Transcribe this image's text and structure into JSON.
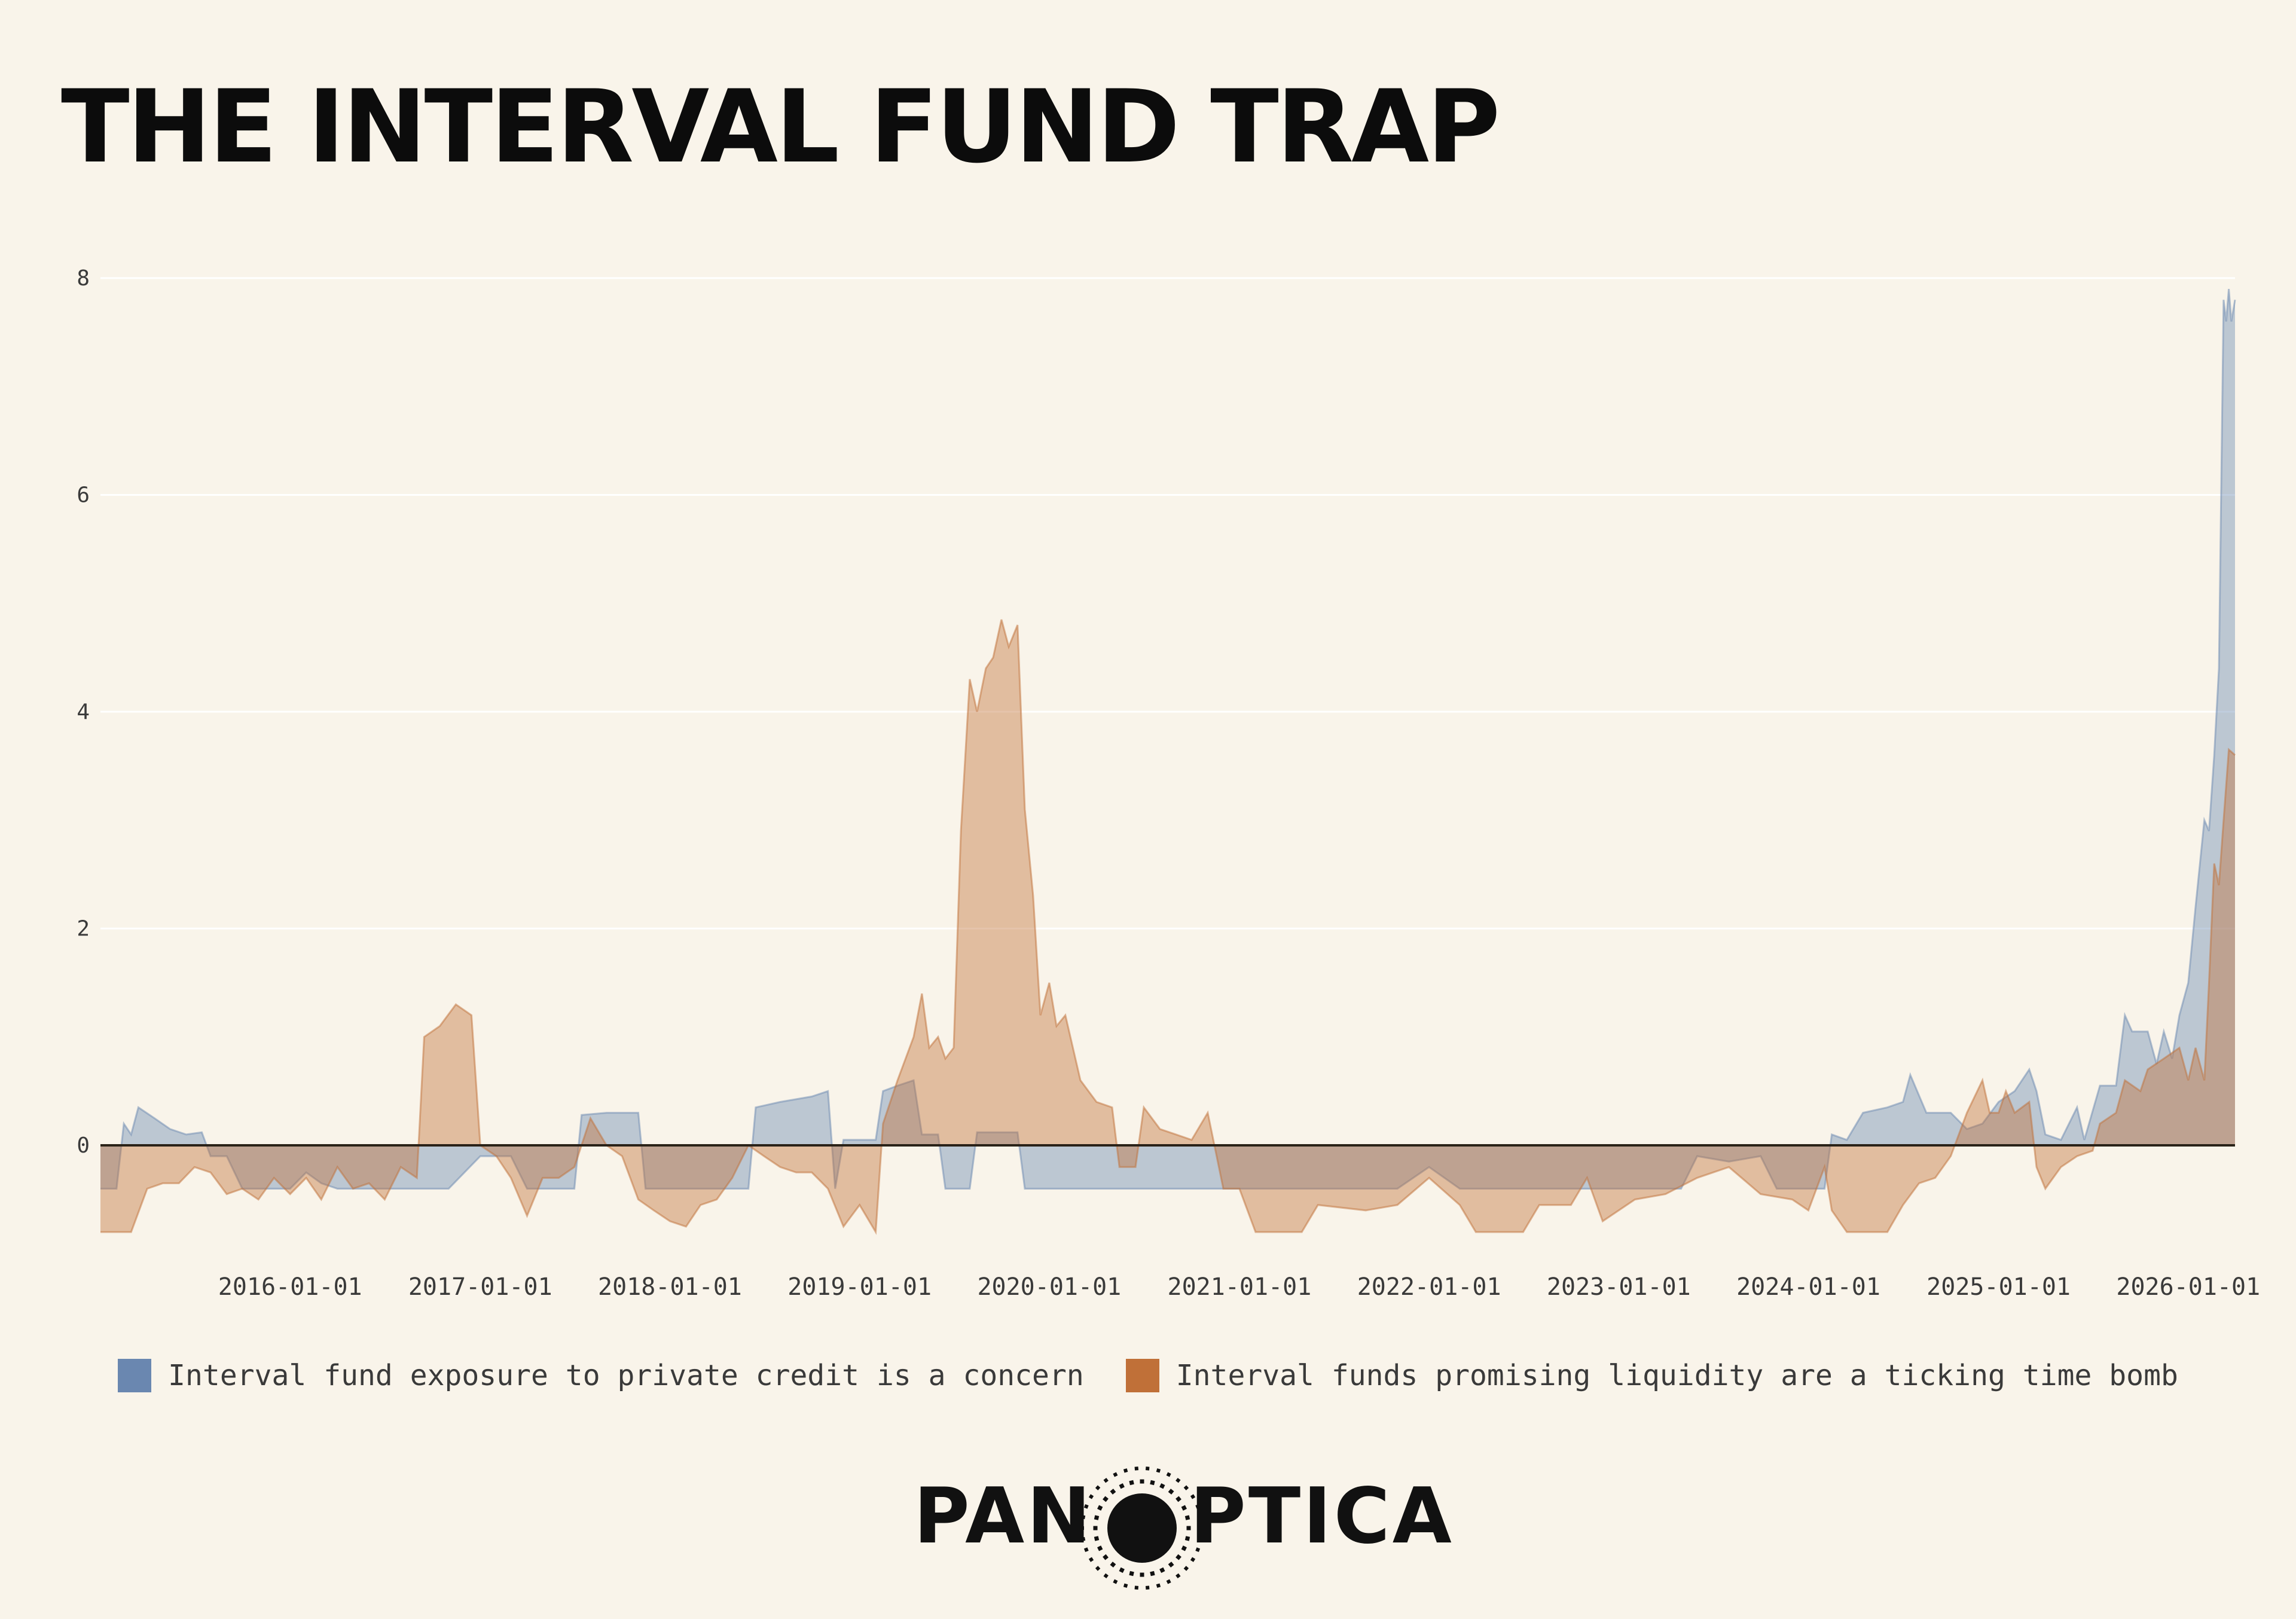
{
  "title": "THE INTERVAL FUND TRAP",
  "chart_data": {
    "type": "area",
    "ylim": [
      -0.8,
      8
    ],
    "yticks": [
      0,
      2,
      4,
      6,
      8
    ],
    "xlim": [
      "2015-01-01",
      "2026-04-01"
    ],
    "xticks": [
      "2016-01-01",
      "2017-01-01",
      "2018-01-01",
      "2019-01-01",
      "2020-01-01",
      "2021-01-01",
      "2022-01-01",
      "2023-01-01",
      "2024-01-01",
      "2025-01-01",
      "2026-01-01"
    ],
    "grid": true,
    "legend_position": "bottom",
    "series": [
      {
        "name": "Interval fund exposure to private credit is a concern",
        "color": "#6a87b0",
        "points": [
          [
            "2015-01-01",
            -0.4
          ],
          [
            "2015-02-01",
            -0.4
          ],
          [
            "2015-02-15",
            0.2
          ],
          [
            "2015-03-01",
            0.1
          ],
          [
            "2015-03-15",
            0.35
          ],
          [
            "2015-04-15",
            0.25
          ],
          [
            "2015-05-15",
            0.15
          ],
          [
            "2015-06-15",
            0.1
          ],
          [
            "2015-07-15",
            0.12
          ],
          [
            "2015-08-01",
            -0.1
          ],
          [
            "2015-09-01",
            -0.1
          ],
          [
            "2015-10-01",
            -0.4
          ],
          [
            "2015-12-01",
            -0.4
          ],
          [
            "2016-01-01",
            -0.4
          ],
          [
            "2016-02-01",
            -0.25
          ],
          [
            "2016-03-01",
            -0.35
          ],
          [
            "2016-04-01",
            -0.4
          ],
          [
            "2016-06-01",
            -0.4
          ],
          [
            "2016-09-01",
            -0.4
          ],
          [
            "2016-11-01",
            -0.4
          ],
          [
            "2017-01-01",
            -0.1
          ],
          [
            "2017-02-01",
            -0.1
          ],
          [
            "2017-03-01",
            -0.1
          ],
          [
            "2017-04-01",
            -0.4
          ],
          [
            "2017-06-01",
            -0.4
          ],
          [
            "2017-07-01",
            -0.4
          ],
          [
            "2017-07-15",
            0.28
          ],
          [
            "2017-09-01",
            0.3
          ],
          [
            "2017-11-01",
            0.3
          ],
          [
            "2017-11-15",
            -0.4
          ],
          [
            "2018-01-01",
            -0.4
          ],
          [
            "2018-03-01",
            -0.4
          ],
          [
            "2018-06-01",
            -0.4
          ],
          [
            "2018-06-15",
            0.35
          ],
          [
            "2018-08-01",
            0.4
          ],
          [
            "2018-10-01",
            0.45
          ],
          [
            "2018-11-01",
            0.5
          ],
          [
            "2018-11-15",
            -0.4
          ],
          [
            "2018-12-01",
            0.05
          ],
          [
            "2019-02-01",
            0.05
          ],
          [
            "2019-02-15",
            0.5
          ],
          [
            "2019-03-15",
            0.55
          ],
          [
            "2019-04-15",
            0.6
          ],
          [
            "2019-05-01",
            0.1
          ],
          [
            "2019-06-01",
            0.1
          ],
          [
            "2019-06-15",
            -0.4
          ],
          [
            "2019-08-01",
            -0.4
          ],
          [
            "2019-08-15",
            0.12
          ],
          [
            "2019-10-01",
            0.12
          ],
          [
            "2019-11-01",
            0.12
          ],
          [
            "2019-11-15",
            -0.4
          ],
          [
            "2020-02-01",
            -0.4
          ],
          [
            "2020-06-01",
            -0.4
          ],
          [
            "2020-09-01",
            -0.4
          ],
          [
            "2020-12-01",
            -0.4
          ],
          [
            "2021-03-01",
            -0.4
          ],
          [
            "2021-06-01",
            -0.4
          ],
          [
            "2021-09-01",
            -0.4
          ],
          [
            "2021-11-01",
            -0.4
          ],
          [
            "2022-01-01",
            -0.2
          ],
          [
            "2022-03-01",
            -0.4
          ],
          [
            "2022-06-01",
            -0.4
          ],
          [
            "2022-09-01",
            -0.4
          ],
          [
            "2022-12-01",
            -0.4
          ],
          [
            "2023-03-01",
            -0.4
          ],
          [
            "2023-05-01",
            -0.4
          ],
          [
            "2023-06-01",
            -0.1
          ],
          [
            "2023-08-01",
            -0.15
          ],
          [
            "2023-10-01",
            -0.1
          ],
          [
            "2023-11-01",
            -0.4
          ],
          [
            "2024-01-01",
            -0.4
          ],
          [
            "2024-02-01",
            -0.4
          ],
          [
            "2024-02-15",
            0.1
          ],
          [
            "2024-03-15",
            0.05
          ],
          [
            "2024-04-15",
            0.3
          ],
          [
            "2024-06-01",
            0.35
          ],
          [
            "2024-07-01",
            0.4
          ],
          [
            "2024-07-15",
            0.65
          ],
          [
            "2024-08-15",
            0.3
          ],
          [
            "2024-10-01",
            0.3
          ],
          [
            "2024-11-01",
            0.15
          ],
          [
            "2024-12-01",
            0.2
          ],
          [
            "2025-01-01",
            0.4
          ],
          [
            "2025-02-01",
            0.5
          ],
          [
            "2025-03-01",
            0.7
          ],
          [
            "2025-03-15",
            0.5
          ],
          [
            "2025-04-01",
            0.1
          ],
          [
            "2025-05-01",
            0.05
          ],
          [
            "2025-06-01",
            0.35
          ],
          [
            "2025-06-15",
            0.05
          ],
          [
            "2025-07-15",
            0.55
          ],
          [
            "2025-08-15",
            0.55
          ],
          [
            "2025-09-01",
            1.2
          ],
          [
            "2025-09-15",
            1.05
          ],
          [
            "2025-10-15",
            1.05
          ],
          [
            "2025-11-01",
            0.75
          ],
          [
            "2025-11-15",
            1.05
          ],
          [
            "2025-12-01",
            0.8
          ],
          [
            "2025-12-15",
            1.2
          ],
          [
            "2026-01-01",
            1.5
          ],
          [
            "2026-01-15",
            2.2
          ],
          [
            "2026-02-01",
            3.0
          ],
          [
            "2026-02-10",
            2.9
          ],
          [
            "2026-02-20",
            3.6
          ],
          [
            "2026-03-01",
            4.4
          ],
          [
            "2026-03-10",
            7.8
          ],
          [
            "2026-03-15",
            7.6
          ],
          [
            "2026-03-20",
            7.9
          ],
          [
            "2026-03-25",
            7.6
          ],
          [
            "2026-04-01",
            7.8
          ]
        ]
      },
      {
        "name": "Interval funds promising liquidity are a ticking time bomb",
        "color": "#c07038",
        "points": [
          [
            "2015-01-01",
            -0.8
          ],
          [
            "2015-03-01",
            -0.8
          ],
          [
            "2015-04-01",
            -0.4
          ],
          [
            "2015-05-01",
            -0.35
          ],
          [
            "2015-06-01",
            -0.35
          ],
          [
            "2015-07-01",
            -0.2
          ],
          [
            "2015-08-01",
            -0.25
          ],
          [
            "2015-09-01",
            -0.45
          ],
          [
            "2015-10-01",
            -0.4
          ],
          [
            "2015-11-01",
            -0.5
          ],
          [
            "2015-12-01",
            -0.3
          ],
          [
            "2016-01-01",
            -0.45
          ],
          [
            "2016-02-01",
            -0.3
          ],
          [
            "2016-03-01",
            -0.5
          ],
          [
            "2016-04-01",
            -0.2
          ],
          [
            "2016-05-01",
            -0.4
          ],
          [
            "2016-06-01",
            -0.35
          ],
          [
            "2016-07-01",
            -0.5
          ],
          [
            "2016-08-01",
            -0.2
          ],
          [
            "2016-09-01",
            -0.3
          ],
          [
            "2016-09-15",
            1.0
          ],
          [
            "2016-10-15",
            1.1
          ],
          [
            "2016-11-15",
            1.3
          ],
          [
            "2016-12-15",
            1.2
          ],
          [
            "2017-01-01",
            0.0
          ],
          [
            "2017-02-01",
            -0.1
          ],
          [
            "2017-03-01",
            -0.3
          ],
          [
            "2017-04-01",
            -0.65
          ],
          [
            "2017-05-01",
            -0.3
          ],
          [
            "2017-06-01",
            -0.3
          ],
          [
            "2017-07-01",
            -0.2
          ],
          [
            "2017-08-01",
            0.25
          ],
          [
            "2017-09-01",
            0.0
          ],
          [
            "2017-10-01",
            -0.1
          ],
          [
            "2017-11-01",
            -0.5
          ],
          [
            "2017-12-01",
            -0.6
          ],
          [
            "2018-01-01",
            -0.7
          ],
          [
            "2018-02-01",
            -0.75
          ],
          [
            "2018-03-01",
            -0.55
          ],
          [
            "2018-04-01",
            -0.5
          ],
          [
            "2018-05-01",
            -0.3
          ],
          [
            "2018-06-01",
            0.0
          ],
          [
            "2018-07-01",
            -0.1
          ],
          [
            "2018-08-01",
            -0.2
          ],
          [
            "2018-09-01",
            -0.25
          ],
          [
            "2018-10-01",
            -0.25
          ],
          [
            "2018-11-01",
            -0.4
          ],
          [
            "2018-12-01",
            -0.75
          ],
          [
            "2019-01-01",
            -0.55
          ],
          [
            "2019-02-01",
            -0.8
          ],
          [
            "2019-02-15",
            0.2
          ],
          [
            "2019-03-15",
            0.6
          ],
          [
            "2019-04-15",
            1.0
          ],
          [
            "2019-05-01",
            1.4
          ],
          [
            "2019-05-15",
            0.9
          ],
          [
            "2019-06-01",
            1.0
          ],
          [
            "2019-06-15",
            0.8
          ],
          [
            "2019-07-01",
            0.9
          ],
          [
            "2019-07-15",
            2.9
          ],
          [
            "2019-08-01",
            4.3
          ],
          [
            "2019-08-15",
            4.0
          ],
          [
            "2019-09-01",
            4.4
          ],
          [
            "2019-09-15",
            4.5
          ],
          [
            "2019-10-01",
            4.85
          ],
          [
            "2019-10-15",
            4.6
          ],
          [
            "2019-11-01",
            4.8
          ],
          [
            "2019-11-15",
            3.1
          ],
          [
            "2019-12-01",
            2.3
          ],
          [
            "2019-12-15",
            1.2
          ],
          [
            "2020-01-01",
            1.5
          ],
          [
            "2020-01-15",
            1.1
          ],
          [
            "2020-02-01",
            1.2
          ],
          [
            "2020-03-01",
            0.6
          ],
          [
            "2020-04-01",
            0.4
          ],
          [
            "2020-05-01",
            0.35
          ],
          [
            "2020-05-15",
            -0.2
          ],
          [
            "2020-06-15",
            -0.2
          ],
          [
            "2020-07-01",
            0.35
          ],
          [
            "2020-08-01",
            0.15
          ],
          [
            "2020-09-01",
            0.1
          ],
          [
            "2020-10-01",
            0.05
          ],
          [
            "2020-11-01",
            0.3
          ],
          [
            "2020-12-01",
            -0.4
          ],
          [
            "2021-01-01",
            -0.4
          ],
          [
            "2021-02-01",
            -0.8
          ],
          [
            "2021-05-01",
            -0.8
          ],
          [
            "2021-06-01",
            -0.55
          ],
          [
            "2021-09-01",
            -0.6
          ],
          [
            "2021-11-01",
            -0.55
          ],
          [
            "2022-01-01",
            -0.3
          ],
          [
            "2022-03-01",
            -0.55
          ],
          [
            "2022-04-01",
            -0.8
          ],
          [
            "2022-07-01",
            -0.8
          ],
          [
            "2022-08-01",
            -0.55
          ],
          [
            "2022-10-01",
            -0.55
          ],
          [
            "2022-11-01",
            -0.3
          ],
          [
            "2022-12-01",
            -0.7
          ],
          [
            "2023-02-01",
            -0.5
          ],
          [
            "2023-04-01",
            -0.45
          ],
          [
            "2023-06-01",
            -0.3
          ],
          [
            "2023-08-01",
            -0.2
          ],
          [
            "2023-10-01",
            -0.45
          ],
          [
            "2023-12-01",
            -0.5
          ],
          [
            "2024-01-01",
            -0.6
          ],
          [
            "2024-02-01",
            -0.2
          ],
          [
            "2024-02-15",
            -0.6
          ],
          [
            "2024-03-15",
            -0.8
          ],
          [
            "2024-06-01",
            -0.8
          ],
          [
            "2024-07-01",
            -0.55
          ],
          [
            "2024-08-01",
            -0.35
          ],
          [
            "2024-09-01",
            -0.3
          ],
          [
            "2024-10-01",
            -0.1
          ],
          [
            "2024-11-01",
            0.3
          ],
          [
            "2024-12-01",
            0.6
          ],
          [
            "2024-12-15",
            0.3
          ],
          [
            "2025-01-01",
            0.3
          ],
          [
            "2025-01-15",
            0.5
          ],
          [
            "2025-02-01",
            0.3
          ],
          [
            "2025-03-01",
            0.4
          ],
          [
            "2025-03-15",
            -0.2
          ],
          [
            "2025-04-01",
            -0.4
          ],
          [
            "2025-05-01",
            -0.2
          ],
          [
            "2025-06-01",
            -0.1
          ],
          [
            "2025-07-01",
            -0.05
          ],
          [
            "2025-07-15",
            0.2
          ],
          [
            "2025-08-15",
            0.3
          ],
          [
            "2025-09-01",
            0.6
          ],
          [
            "2025-10-01",
            0.5
          ],
          [
            "2025-10-15",
            0.7
          ],
          [
            "2025-11-15",
            0.8
          ],
          [
            "2025-12-15",
            0.9
          ],
          [
            "2026-01-01",
            0.6
          ],
          [
            "2026-01-15",
            0.9
          ],
          [
            "2026-02-01",
            0.6
          ],
          [
            "2026-02-10",
            1.5
          ],
          [
            "2026-02-20",
            2.6
          ],
          [
            "2026-03-01",
            2.4
          ],
          [
            "2026-03-10",
            3.0
          ],
          [
            "2026-03-20",
            3.65
          ],
          [
            "2026-04-01",
            3.6
          ]
        ]
      }
    ]
  },
  "legend": {
    "items": [
      {
        "label": "Interval fund exposure to private credit is a concern",
        "color": "#6a87b0"
      },
      {
        "label": "Interval funds promising liquidity are a ticking time bomb",
        "color": "#c07038"
      }
    ]
  },
  "logo": {
    "left_text": "PAN",
    "right_text": "PTICA"
  }
}
